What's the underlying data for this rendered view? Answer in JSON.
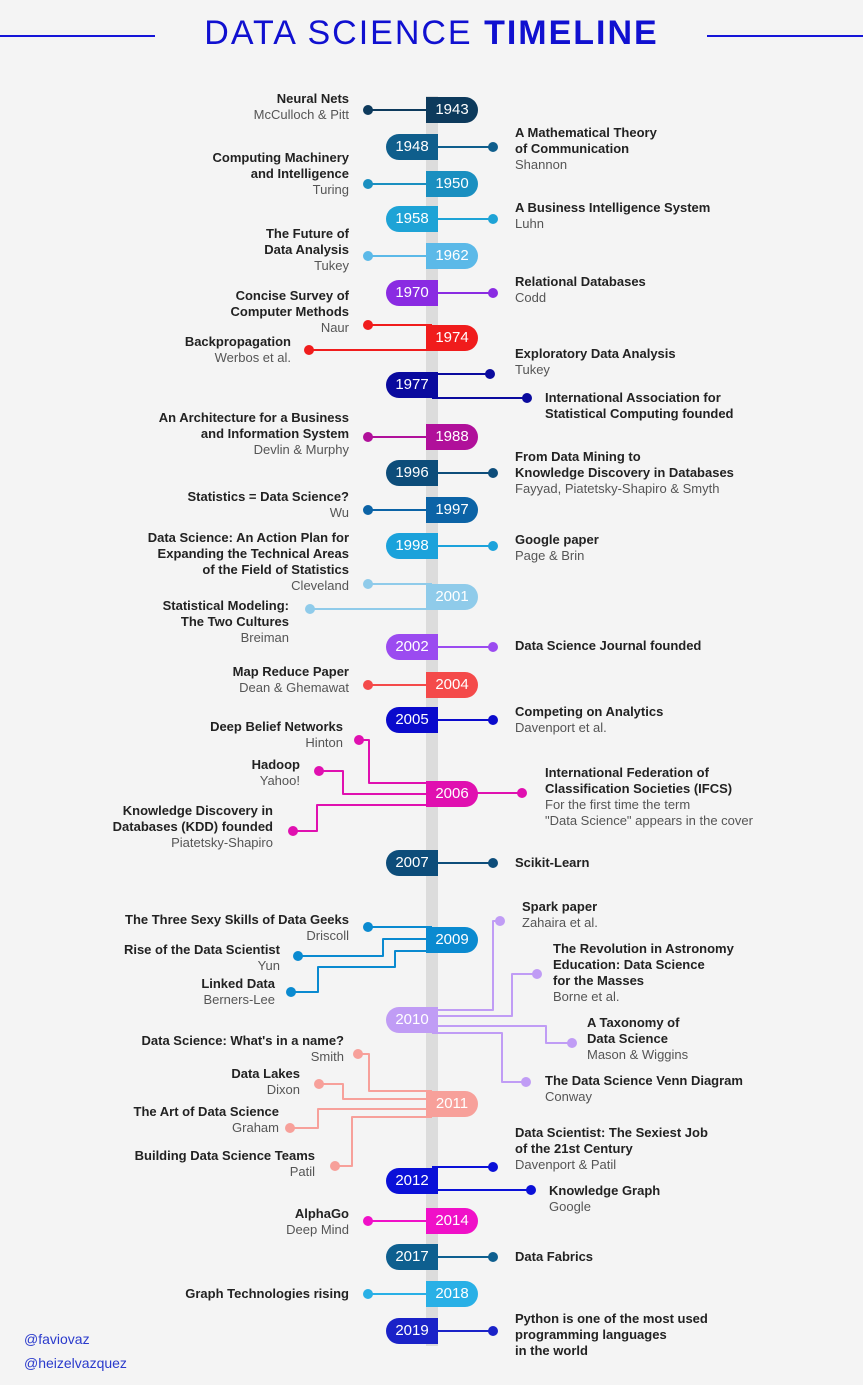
{
  "header": {
    "title_light": "DATA SCIENCE",
    "title_bold": "TIMELINE",
    "accent": "#1010d0"
  },
  "years": [
    {
      "year": "1943",
      "color": "#0d3a5c",
      "events": [
        {
          "title": "Neural Nets",
          "author": "McCulloch & Pitt"
        }
      ]
    },
    {
      "year": "1948",
      "color": "#0f5e8c",
      "events": [
        {
          "title": "A Mathematical Theory\nof Communication",
          "author": "Shannon"
        }
      ]
    },
    {
      "year": "1950",
      "color": "#1a8fc0",
      "events": [
        {
          "title": "Computing Machinery\nand Intelligence",
          "author": "Turing"
        }
      ]
    },
    {
      "year": "1958",
      "color": "#1ea3d6",
      "events": [
        {
          "title": "A Business Intelligence System",
          "author": "Luhn"
        }
      ]
    },
    {
      "year": "1962",
      "color": "#5bb9e8",
      "events": [
        {
          "title": "The Future of\nData Analysis",
          "author": "Tukey"
        }
      ]
    },
    {
      "year": "1970",
      "color": "#8a2be2",
      "events": [
        {
          "title": "Relational Databases",
          "author": "Codd"
        }
      ]
    },
    {
      "year": "1974",
      "color": "#f01c1c",
      "events": [
        {
          "title": "Concise Survey of\nComputer Methods",
          "author": "Naur"
        },
        {
          "title": "Backpropagation",
          "author": "Werbos et al."
        }
      ]
    },
    {
      "year": "1977",
      "color": "#0a0a9e",
      "events": [
        {
          "title": "Exploratory Data Analysis",
          "author": "Tukey"
        },
        {
          "title": "International Association for\nStatistical Computing founded"
        }
      ]
    },
    {
      "year": "1988",
      "color": "#b0109a",
      "events": [
        {
          "title": "An Architecture for a Business\nand Information System",
          "author": "Devlin & Murphy"
        }
      ]
    },
    {
      "year": "1996",
      "color": "#0d4d7a",
      "events": [
        {
          "title": "From Data Mining to\nKnowledge Discovery in Databases",
          "author": "Fayyad, Piatetsky-Shapiro & Smyth"
        }
      ]
    },
    {
      "year": "1997",
      "color": "#0b63a6",
      "events": [
        {
          "title": "Statistics = Data Science?",
          "author": "Wu"
        }
      ]
    },
    {
      "year": "1998",
      "color": "#1ba2db",
      "events": [
        {
          "title": "Google paper",
          "author": "Page & Brin"
        }
      ]
    },
    {
      "year": "2001",
      "color": "#8fcbea",
      "events": [
        {
          "title": "Data Science: An Action Plan for\nExpanding the Technical Areas\nof the Field of Statistics",
          "author": "Cleveland"
        },
        {
          "title": "Statistical Modeling:\nThe Two Cultures",
          "author": "Breiman"
        }
      ]
    },
    {
      "year": "2002",
      "color": "#9b4bf0",
      "events": [
        {
          "title": "Data Science Journal founded"
        }
      ]
    },
    {
      "year": "2004",
      "color": "#f44a4a",
      "events": [
        {
          "title": "Map Reduce Paper",
          "author": "Dean & Ghemawat"
        }
      ]
    },
    {
      "year": "2005",
      "color": "#0a0acc",
      "events": [
        {
          "title": "Competing on Analytics",
          "author": "Davenport et al."
        }
      ]
    },
    {
      "year": "2006",
      "color": "#e010b0",
      "events": [
        {
          "title": "Deep Belief Networks",
          "author": "Hinton"
        },
        {
          "title": "Hadoop",
          "author": "Yahoo!"
        },
        {
          "title": "Knowledge Discovery in\nDatabases (KDD) founded",
          "author": "Piatetsky-Shapiro"
        },
        {
          "title": "International Federation of\nClassification Societies (IFCS)",
          "desc": "For the first time the term\n\"Data Science\" appears in the cover"
        }
      ]
    },
    {
      "year": "2007",
      "color": "#0d4d7a",
      "events": [
        {
          "title": "Scikit-Learn"
        }
      ]
    },
    {
      "year": "2009",
      "color": "#0a8ad0",
      "events": [
        {
          "title": "The Three Sexy Skills of Data Geeks",
          "author": "Driscoll"
        },
        {
          "title": "Rise of the Data Scientist",
          "author": "Yun"
        },
        {
          "title": "Linked Data",
          "author": "Berners-Lee"
        }
      ]
    },
    {
      "year": "2010",
      "color": "#c09cf5",
      "events": [
        {
          "title": "Spark paper",
          "author": "Zahaira et al."
        },
        {
          "title": "The Revolution in Astronomy\nEducation: Data Science\nfor the Masses",
          "author": "Borne et al."
        },
        {
          "title": "A Taxonomy of\nData Science",
          "author": "Mason & Wiggins"
        },
        {
          "title": "The Data Science Venn Diagram",
          "author": "Conway"
        }
      ]
    },
    {
      "year": "2011",
      "color": "#f7a09a",
      "events": [
        {
          "title": "Data Science:  What's in a name?",
          "author": "Smith"
        },
        {
          "title": "Data Lakes",
          "author": "Dixon"
        },
        {
          "title": "The Art of Data Science",
          "author": "Graham"
        },
        {
          "title": "Building Data Science Teams",
          "author": "Patil"
        }
      ]
    },
    {
      "year": "2012",
      "color": "#0a10d8",
      "events": [
        {
          "title": "Data Scientist: The Sexiest Job\nof the 21st Century",
          "author": "Davenport & Patil"
        },
        {
          "title": "Knowledge Graph",
          "author": "Google"
        }
      ]
    },
    {
      "year": "2014",
      "color": "#f010c8",
      "events": [
        {
          "title": "AlphaGo",
          "author": "Deep Mind"
        }
      ]
    },
    {
      "year": "2017",
      "color": "#0e5f8f",
      "events": [
        {
          "title": "Data Fabrics"
        }
      ]
    },
    {
      "year": "2018",
      "color": "#29b0e6",
      "events": [
        {
          "title": "Graph Technologies rising"
        }
      ]
    },
    {
      "year": "2019",
      "color": "#1a22c8",
      "events": [
        {
          "title": "Python is one of the most used\nprogramming languages\nin the world"
        }
      ]
    }
  ],
  "footer": {
    "handles": [
      "@faviovaz",
      "@heizelvazquez"
    ]
  }
}
